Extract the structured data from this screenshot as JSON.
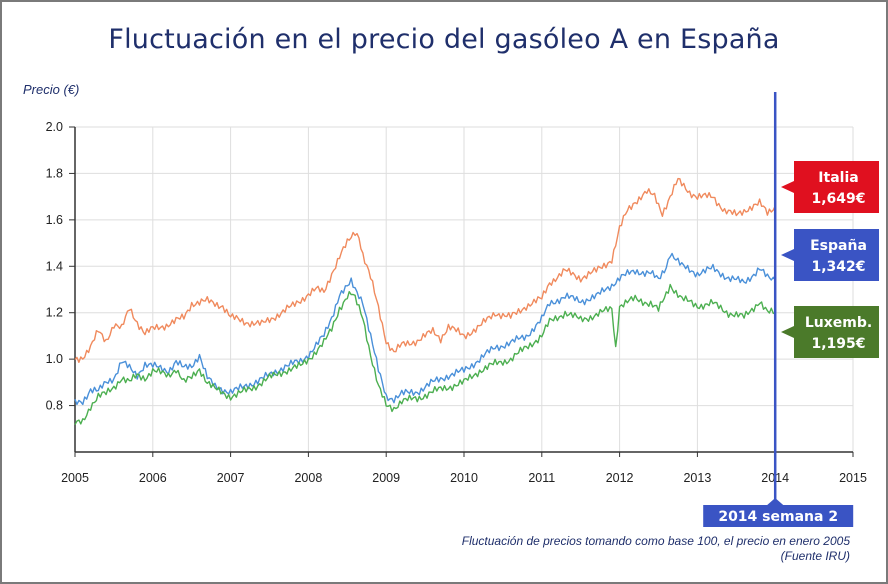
{
  "title": "Fluctuación en el precio del gasóleo A en España",
  "footnote": {
    "line1": "Fluctuación de precios tomando como base 100, el precio en enero 2005",
    "line2": "(Fuente IRU)"
  },
  "chart_data": {
    "type": "line",
    "ylabel": "Precio (€)",
    "xlim": [
      2005,
      2015
    ],
    "ylim": [
      0.6,
      2.0
    ],
    "x_ticks": [
      2005,
      2006,
      2007,
      2008,
      2009,
      2010,
      2011,
      2012,
      2013,
      2014,
      2015
    ],
    "y_ticks": [
      0.8,
      1.0,
      1.2,
      1.4,
      1.6,
      1.8,
      2.0
    ],
    "y_tick_labels": [
      "0.8",
      "1.0",
      "1.2",
      "1.4",
      "1.6",
      "1.8",
      "2.0"
    ],
    "grid": true,
    "marker": {
      "x": 2014.0,
      "label": "2014 semana 2",
      "color": "#3a54c4"
    },
    "series": [
      {
        "name": "Italia",
        "color": "#f08a5d",
        "tag_color": "#e0101f",
        "label": "Italia",
        "value_label": "1,649€",
        "points": [
          [
            2005.0,
            1.0
          ],
          [
            2005.1,
            1.01
          ],
          [
            2005.2,
            1.05
          ],
          [
            2005.3,
            1.12
          ],
          [
            2005.4,
            1.08
          ],
          [
            2005.5,
            1.15
          ],
          [
            2005.6,
            1.13
          ],
          [
            2005.7,
            1.22
          ],
          [
            2005.8,
            1.16
          ],
          [
            2005.9,
            1.11
          ],
          [
            2006.0,
            1.13
          ],
          [
            2006.2,
            1.15
          ],
          [
            2006.4,
            1.18
          ],
          [
            2006.5,
            1.24
          ],
          [
            2006.7,
            1.25
          ],
          [
            2006.9,
            1.23
          ],
          [
            2007.0,
            1.18
          ],
          [
            2007.2,
            1.16
          ],
          [
            2007.4,
            1.15
          ],
          [
            2007.6,
            1.19
          ],
          [
            2007.8,
            1.23
          ],
          [
            2008.0,
            1.28
          ],
          [
            2008.1,
            1.3
          ],
          [
            2008.2,
            1.29
          ],
          [
            2008.3,
            1.37
          ],
          [
            2008.4,
            1.44
          ],
          [
            2008.5,
            1.5
          ],
          [
            2008.6,
            1.55
          ],
          [
            2008.65,
            1.53
          ],
          [
            2008.7,
            1.45
          ],
          [
            2008.8,
            1.35
          ],
          [
            2008.9,
            1.22
          ],
          [
            2009.0,
            1.08
          ],
          [
            2009.1,
            1.03
          ],
          [
            2009.2,
            1.06
          ],
          [
            2009.4,
            1.08
          ],
          [
            2009.6,
            1.12
          ],
          [
            2009.7,
            1.09
          ],
          [
            2009.8,
            1.14
          ],
          [
            2010.0,
            1.1
          ],
          [
            2010.2,
            1.14
          ],
          [
            2010.4,
            1.2
          ],
          [
            2010.6,
            1.18
          ],
          [
            2010.8,
            1.23
          ],
          [
            2011.0,
            1.26
          ],
          [
            2011.1,
            1.33
          ],
          [
            2011.3,
            1.38
          ],
          [
            2011.5,
            1.35
          ],
          [
            2011.7,
            1.38
          ],
          [
            2011.9,
            1.43
          ],
          [
            2012.0,
            1.56
          ],
          [
            2012.1,
            1.64
          ],
          [
            2012.2,
            1.68
          ],
          [
            2012.35,
            1.72
          ],
          [
            2012.45,
            1.7
          ],
          [
            2012.55,
            1.63
          ],
          [
            2012.65,
            1.7
          ],
          [
            2012.75,
            1.77
          ],
          [
            2012.9,
            1.72
          ],
          [
            2013.0,
            1.7
          ],
          [
            2013.2,
            1.7
          ],
          [
            2013.35,
            1.64
          ],
          [
            2013.5,
            1.62
          ],
          [
            2013.65,
            1.65
          ],
          [
            2013.8,
            1.67
          ],
          [
            2013.9,
            1.63
          ],
          [
            2014.0,
            1.66
          ]
        ]
      },
      {
        "name": "España",
        "color": "#4a90d9",
        "tag_color": "#3a54c4",
        "label": "España",
        "value_label": "1,342€",
        "points": [
          [
            2005.0,
            0.81
          ],
          [
            2005.1,
            0.82
          ],
          [
            2005.2,
            0.87
          ],
          [
            2005.3,
            0.86
          ],
          [
            2005.4,
            0.9
          ],
          [
            2005.5,
            0.92
          ],
          [
            2005.6,
            0.99
          ],
          [
            2005.7,
            0.96
          ],
          [
            2005.8,
            0.93
          ],
          [
            2005.9,
            0.98
          ],
          [
            2006.0,
            0.97
          ],
          [
            2006.2,
            0.95
          ],
          [
            2006.3,
            0.99
          ],
          [
            2006.4,
            0.96
          ],
          [
            2006.5,
            0.97
          ],
          [
            2006.6,
            1.02
          ],
          [
            2006.7,
            0.92
          ],
          [
            2006.8,
            0.88
          ],
          [
            2007.0,
            0.86
          ],
          [
            2007.1,
            0.87
          ],
          [
            2007.3,
            0.9
          ],
          [
            2007.5,
            0.93
          ],
          [
            2007.7,
            0.97
          ],
          [
            2007.9,
            0.99
          ],
          [
            2008.0,
            1.02
          ],
          [
            2008.2,
            1.1
          ],
          [
            2008.3,
            1.18
          ],
          [
            2008.4,
            1.28
          ],
          [
            2008.5,
            1.31
          ],
          [
            2008.55,
            1.33
          ],
          [
            2008.6,
            1.3
          ],
          [
            2008.7,
            1.25
          ],
          [
            2008.8,
            1.1
          ],
          [
            2008.9,
            0.95
          ],
          [
            2009.0,
            0.84
          ],
          [
            2009.1,
            0.83
          ],
          [
            2009.2,
            0.85
          ],
          [
            2009.4,
            0.86
          ],
          [
            2009.6,
            0.9
          ],
          [
            2009.8,
            0.93
          ],
          [
            2010.0,
            0.95
          ],
          [
            2010.2,
            1.0
          ],
          [
            2010.4,
            1.05
          ],
          [
            2010.6,
            1.07
          ],
          [
            2010.8,
            1.1
          ],
          [
            2011.0,
            1.17
          ],
          [
            2011.1,
            1.24
          ],
          [
            2011.3,
            1.27
          ],
          [
            2011.5,
            1.25
          ],
          [
            2011.7,
            1.27
          ],
          [
            2011.9,
            1.32
          ],
          [
            2012.0,
            1.35
          ],
          [
            2012.2,
            1.38
          ],
          [
            2012.4,
            1.37
          ],
          [
            2012.5,
            1.34
          ],
          [
            2012.6,
            1.4
          ],
          [
            2012.65,
            1.46
          ],
          [
            2012.8,
            1.4
          ],
          [
            2013.0,
            1.37
          ],
          [
            2013.2,
            1.39
          ],
          [
            2013.4,
            1.35
          ],
          [
            2013.6,
            1.33
          ],
          [
            2013.8,
            1.39
          ],
          [
            2013.9,
            1.35
          ],
          [
            2014.0,
            1.34
          ]
        ]
      },
      {
        "name": "Luxemb.",
        "color": "#4caf50",
        "tag_color": "#4b7a2a",
        "label": "Luxemb.",
        "value_label": "1,195€",
        "points": [
          [
            2005.0,
            0.72
          ],
          [
            2005.1,
            0.73
          ],
          [
            2005.2,
            0.8
          ],
          [
            2005.3,
            0.84
          ],
          [
            2005.4,
            0.85
          ],
          [
            2005.5,
            0.88
          ],
          [
            2005.6,
            0.92
          ],
          [
            2005.7,
            0.9
          ],
          [
            2005.8,
            0.93
          ],
          [
            2005.9,
            0.92
          ],
          [
            2006.0,
            0.95
          ],
          [
            2006.2,
            0.93
          ],
          [
            2006.3,
            0.96
          ],
          [
            2006.4,
            0.9
          ],
          [
            2006.5,
            0.92
          ],
          [
            2006.6,
            0.96
          ],
          [
            2006.7,
            0.9
          ],
          [
            2006.8,
            0.87
          ],
          [
            2007.0,
            0.84
          ],
          [
            2007.1,
            0.85
          ],
          [
            2007.3,
            0.88
          ],
          [
            2007.5,
            0.92
          ],
          [
            2007.7,
            0.95
          ],
          [
            2007.9,
            0.97
          ],
          [
            2008.0,
            1.0
          ],
          [
            2008.2,
            1.07
          ],
          [
            2008.3,
            1.13
          ],
          [
            2008.4,
            1.22
          ],
          [
            2008.5,
            1.27
          ],
          [
            2008.55,
            1.28
          ],
          [
            2008.6,
            1.26
          ],
          [
            2008.7,
            1.18
          ],
          [
            2008.8,
            1.02
          ],
          [
            2008.9,
            0.88
          ],
          [
            2009.0,
            0.8
          ],
          [
            2009.1,
            0.79
          ],
          [
            2009.2,
            0.82
          ],
          [
            2009.4,
            0.83
          ],
          [
            2009.6,
            0.86
          ],
          [
            2009.8,
            0.88
          ],
          [
            2010.0,
            0.9
          ],
          [
            2010.2,
            0.95
          ],
          [
            2010.4,
            0.98
          ],
          [
            2010.6,
            1.0
          ],
          [
            2010.8,
            1.05
          ],
          [
            2011.0,
            1.1
          ],
          [
            2011.1,
            1.16
          ],
          [
            2011.3,
            1.2
          ],
          [
            2011.5,
            1.17
          ],
          [
            2011.7,
            1.19
          ],
          [
            2011.9,
            1.22
          ],
          [
            2011.95,
            1.05
          ],
          [
            2012.0,
            1.23
          ],
          [
            2012.2,
            1.26
          ],
          [
            2012.4,
            1.24
          ],
          [
            2012.5,
            1.21
          ],
          [
            2012.6,
            1.28
          ],
          [
            2012.65,
            1.32
          ],
          [
            2012.8,
            1.26
          ],
          [
            2013.0,
            1.23
          ],
          [
            2013.2,
            1.24
          ],
          [
            2013.4,
            1.2
          ],
          [
            2013.6,
            1.18
          ],
          [
            2013.8,
            1.25
          ],
          [
            2013.9,
            1.2
          ],
          [
            2014.0,
            1.2
          ]
        ]
      }
    ]
  }
}
